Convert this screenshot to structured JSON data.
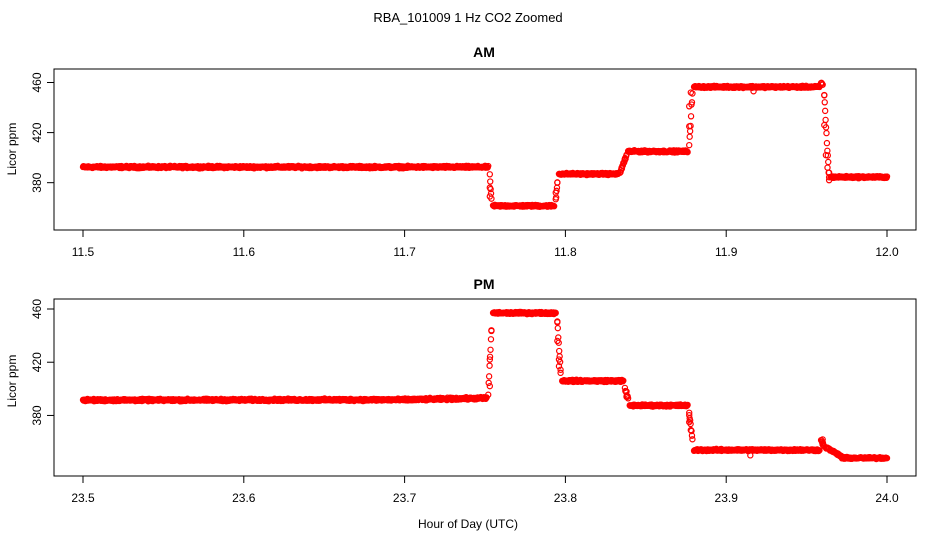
{
  "figure": {
    "title": "RBA_101009  1 Hz CO2 Zoomed",
    "xlabel": "Hour of Day (UTC)",
    "point_color": "#ff0000"
  },
  "chart_data": [
    {
      "type": "scatter",
      "title": "AM",
      "ylabel": "Licor ppm",
      "xlim": [
        11.5,
        12.0
      ],
      "ylim": [
        347,
        466
      ],
      "xticks": [
        11.5,
        11.6,
        11.7,
        11.8,
        11.9,
        12.0
      ],
      "xtick_labels": [
        "11.5",
        "11.6",
        "11.7",
        "11.8",
        "11.9",
        "12.0"
      ],
      "yticks": [
        380,
        420,
        460
      ],
      "ytick_labels": [
        "380",
        "420",
        "460"
      ],
      "grid": false,
      "series": [
        {
          "marker": "open-circle",
          "segments": [
            {
              "x_start": 11.5,
              "x_end": 11.752,
              "y_start": 392.5,
              "y_end": 392.5,
              "noise": 1.0
            },
            {
              "x_start": 11.753,
              "x_end": 11.754,
              "y_start": 385.0,
              "y_end": 367.0,
              "noise": 2.0
            },
            {
              "x_start": 11.755,
              "x_end": 11.793,
              "y_start": 361.5,
              "y_end": 361.5,
              "noise": 0.9
            },
            {
              "x_start": 11.794,
              "x_end": 11.795,
              "y_start": 366.0,
              "y_end": 380.0,
              "noise": 2.0
            },
            {
              "x_start": 11.796,
              "x_end": 11.833,
              "y_start": 387.0,
              "y_end": 387.0,
              "noise": 0.9
            },
            {
              "x_start": 11.834,
              "x_end": 11.838,
              "y_start": 388.0,
              "y_end": 402.0,
              "noise": 2.0
            },
            {
              "x_start": 11.839,
              "x_end": 11.876,
              "y_start": 405.0,
              "y_end": 405.0,
              "noise": 0.9
            },
            {
              "x_start": 11.877,
              "x_end": 11.879,
              "y_start": 410.0,
              "y_end": 452.0,
              "noise": 3.0
            },
            {
              "x_start": 11.88,
              "x_end": 11.958,
              "y_start": 456.5,
              "y_end": 456.5,
              "noise": 0.9
            },
            {
              "x_start": 11.959,
              "x_end": 11.96,
              "y_start": 460.0,
              "y_end": 458.0,
              "noise": 1.0
            },
            {
              "x_start": 11.961,
              "x_end": 11.964,
              "y_start": 449.0,
              "y_end": 383.0,
              "noise": 3.0
            },
            {
              "x_start": 11.965,
              "x_end": 12.0,
              "y_start": 384.5,
              "y_end": 384.5,
              "noise": 0.9
            }
          ],
          "outliers": [
            {
              "x": 11.753,
              "y": 376
            },
            {
              "x": 11.753,
              "y": 369
            },
            {
              "x": 11.794,
              "y": 372
            },
            {
              "x": 11.795,
              "y": 380
            },
            {
              "x": 11.835,
              "y": 392
            },
            {
              "x": 11.837,
              "y": 398
            },
            {
              "x": 11.877,
              "y": 425
            },
            {
              "x": 11.877,
              "y": 441
            },
            {
              "x": 11.878,
              "y": 452
            },
            {
              "x": 11.917,
              "y": 453
            },
            {
              "x": 11.961,
              "y": 450
            },
            {
              "x": 11.961,
              "y": 426
            },
            {
              "x": 11.962,
              "y": 402
            },
            {
              "x": 11.963,
              "y": 392
            },
            {
              "x": 11.964,
              "y": 388
            },
            {
              "x": 11.964,
              "y": 382
            }
          ]
        }
      ]
    },
    {
      "type": "scatter",
      "title": "PM",
      "ylabel": "Licor ppm",
      "xlim": [
        23.5,
        24.0
      ],
      "ylim": [
        339,
        463
      ],
      "xticks": [
        23.5,
        23.6,
        23.7,
        23.8,
        23.9,
        24.0
      ],
      "xtick_labels": [
        "23.5",
        "23.6",
        "23.7",
        "23.8",
        "23.9",
        "24.0"
      ],
      "yticks": [
        380,
        420,
        460
      ],
      "ytick_labels": [
        "380",
        "420",
        "460"
      ],
      "grid": false,
      "series": [
        {
          "marker": "open-circle",
          "segments": [
            {
              "x_start": 23.5,
              "x_end": 23.7,
              "y_start": 391.5,
              "y_end": 391.8,
              "noise": 1.0
            },
            {
              "x_start": 23.7,
              "x_end": 23.751,
              "y_start": 391.8,
              "y_end": 393.0,
              "noise": 1.0
            },
            {
              "x_start": 23.752,
              "x_end": 23.754,
              "y_start": 396.0,
              "y_end": 444.0,
              "noise": 3.0
            },
            {
              "x_start": 23.755,
              "x_end": 23.794,
              "y_start": 457.0,
              "y_end": 457.0,
              "noise": 0.9
            },
            {
              "x_start": 23.795,
              "x_end": 23.797,
              "y_start": 450.0,
              "y_end": 415.0,
              "noise": 3.0
            },
            {
              "x_start": 23.798,
              "x_end": 23.836,
              "y_start": 406.0,
              "y_end": 406.0,
              "noise": 0.9
            },
            {
              "x_start": 23.837,
              "x_end": 23.839,
              "y_start": 400.0,
              "y_end": 392.0,
              "noise": 2.0
            },
            {
              "x_start": 23.84,
              "x_end": 23.876,
              "y_start": 387.5,
              "y_end": 387.5,
              "noise": 0.9
            },
            {
              "x_start": 23.877,
              "x_end": 23.879,
              "y_start": 380.0,
              "y_end": 362.0,
              "noise": 2.0
            },
            {
              "x_start": 23.88,
              "x_end": 23.958,
              "y_start": 354.0,
              "y_end": 354.0,
              "noise": 0.9
            },
            {
              "x_start": 23.959,
              "x_end": 23.961,
              "y_start": 361.0,
              "y_end": 357.0,
              "noise": 1.5
            },
            {
              "x_start": 23.962,
              "x_end": 23.972,
              "y_start": 356.0,
              "y_end": 349.0,
              "noise": 0.9
            },
            {
              "x_start": 23.972,
              "x_end": 24.0,
              "y_start": 348.0,
              "y_end": 348.0,
              "noise": 0.8
            }
          ],
          "outliers": [
            {
              "x": 23.753,
              "y": 402
            },
            {
              "x": 23.753,
              "y": 422
            },
            {
              "x": 23.754,
              "y": 444
            },
            {
              "x": 23.795,
              "y": 450
            },
            {
              "x": 23.795,
              "y": 436
            },
            {
              "x": 23.796,
              "y": 422
            },
            {
              "x": 23.796,
              "y": 417
            },
            {
              "x": 23.797,
              "y": 412
            },
            {
              "x": 23.838,
              "y": 394
            },
            {
              "x": 23.838,
              "y": 398
            },
            {
              "x": 23.877,
              "y": 382
            },
            {
              "x": 23.877,
              "y": 375
            },
            {
              "x": 23.878,
              "y": 369
            },
            {
              "x": 23.915,
              "y": 350
            },
            {
              "x": 23.96,
              "y": 362
            },
            {
              "x": 23.96,
              "y": 358
            }
          ]
        }
      ]
    }
  ]
}
